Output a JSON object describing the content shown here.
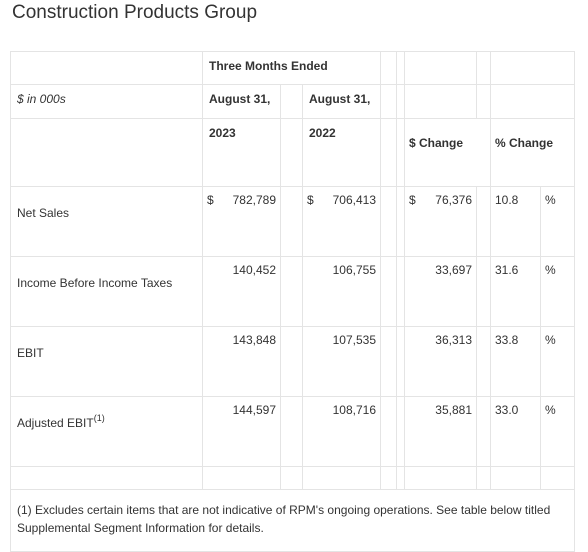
{
  "title": "Construction Products Group",
  "header": {
    "period_label": "Three Months Ended",
    "units_label": "$ in 000s",
    "col1_date": "August 31,",
    "col1_year": "2023",
    "col2_date": "August 31,",
    "col2_year": "2022",
    "dollar_change": "$ Change",
    "percent_change": "% Change"
  },
  "rows": [
    {
      "label": "Net Sales",
      "sup": "",
      "cur_sign": "$",
      "v2023": "782,789",
      "v2022_sign": "$",
      "v2022": "706,413",
      "chg_sign": "$",
      "chg": "76,376",
      "pct": "10.8",
      "pct_sign": "%"
    },
    {
      "label": "Income Before Income Taxes",
      "sup": "",
      "cur_sign": "",
      "v2023": "140,452",
      "v2022_sign": "",
      "v2022": "106,755",
      "chg_sign": "",
      "chg": "33,697",
      "pct": "31.6",
      "pct_sign": "%"
    },
    {
      "label": "EBIT",
      "sup": "",
      "cur_sign": "",
      "v2023": "143,848",
      "v2022_sign": "",
      "v2022": "107,535",
      "chg_sign": "",
      "chg": "36,313",
      "pct": "33.8",
      "pct_sign": "%"
    },
    {
      "label": "Adjusted EBIT",
      "sup": "(1)",
      "cur_sign": "",
      "v2023": "144,597",
      "v2022_sign": "",
      "v2022": "108,716",
      "chg_sign": "",
      "chg": "35,881",
      "pct": "33.0",
      "pct_sign": "%"
    }
  ],
  "footnote": "(1) Excludes certain items that are not indicative of RPM's ongoing operations. See table below titled Supplemental Segment Information for details."
}
